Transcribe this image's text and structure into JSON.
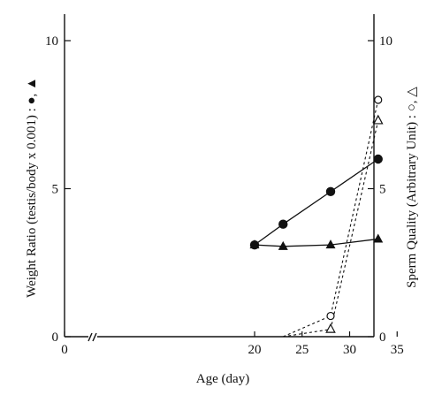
{
  "chart_data": {
    "type": "line",
    "xlabel": "Age (day)",
    "ylabel_left": "Weight  Ratio  (testis/body x 0.001) : ●, ▲",
    "ylabel_right": "Sperm  Quality (Arbitrary  Unit) : ○, △",
    "xlim": [
      0,
      38
    ],
    "x_ticks": [
      0,
      20,
      25,
      30,
      35
    ],
    "x_axis_break": true,
    "ylim_left": [
      0,
      10
    ],
    "ylim_right": [
      0,
      10
    ],
    "y_ticks_left": [
      0,
      5,
      10
    ],
    "y_ticks_right": [
      0,
      5,
      10
    ],
    "grid": false,
    "legend": "none",
    "series": [
      {
        "axis": "left",
        "marker": "filled-circle",
        "line": "solid",
        "x": [
          20,
          23,
          28,
          33
        ],
        "y": [
          3.1,
          3.8,
          4.9,
          6.0
        ]
      },
      {
        "axis": "left",
        "marker": "filled-triangle",
        "line": "solid",
        "x": [
          20,
          23,
          28,
          33
        ],
        "y": [
          3.1,
          3.05,
          3.1,
          3.3
        ]
      },
      {
        "axis": "right",
        "marker": "open-circle",
        "line": "dashed",
        "x": [
          23,
          28,
          33
        ],
        "y": [
          0,
          0.7,
          8.0
        ]
      },
      {
        "axis": "right",
        "marker": "open-triangle",
        "line": "dashed",
        "x": [
          23,
          28,
          33
        ],
        "y": [
          0,
          0.25,
          7.3
        ]
      }
    ]
  }
}
